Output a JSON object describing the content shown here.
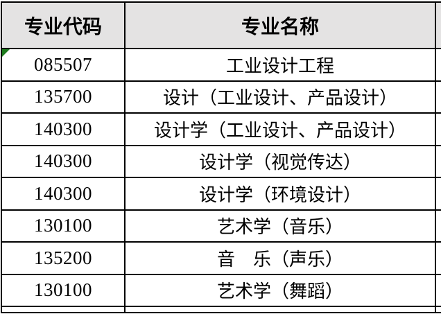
{
  "colors": {
    "header_bg": "#e4e3e3",
    "table_border": "#000000",
    "error_indicator_green": "#1e7b1e",
    "text": "#000000"
  },
  "table": {
    "headers": [
      {
        "label": "专业代码"
      },
      {
        "label": "专业名称"
      }
    ],
    "rows": [
      {
        "code": "085507",
        "name": "工业设计工程"
      },
      {
        "code": "135700",
        "name": "设计（工业设计、产品设计）"
      },
      {
        "code": "140300",
        "name": "设计学（工业设计、产品设计）"
      },
      {
        "code": "140300",
        "name": "设计学（视觉传达）"
      },
      {
        "code": "140300",
        "name": "设计学（环境设计）"
      },
      {
        "code": "130100",
        "name": "艺术学（音乐）"
      },
      {
        "code": "135200",
        "name": "音　乐（声乐）"
      },
      {
        "code": "130100",
        "name": "艺术学（舞蹈）"
      }
    ]
  }
}
